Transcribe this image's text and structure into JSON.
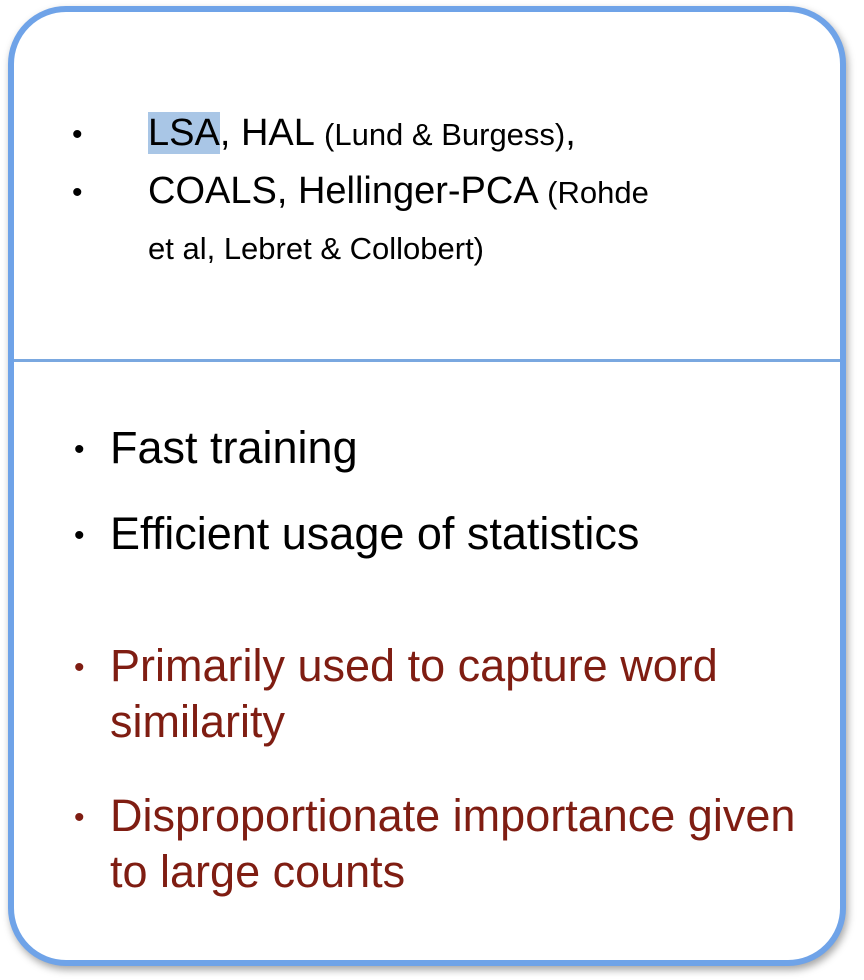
{
  "top": {
    "item1": {
      "bullet": "•",
      "lsa": "LSA",
      "hal": ", HAL ",
      "cite": "(Lund & Burgess)",
      "tail": ","
    },
    "item2": {
      "bullet": "•",
      "main": "COALS, Hellinger-PCA ",
      "cite_a": "(Rohde",
      "cite_b": "et al, Lebret & Collobert)"
    }
  },
  "bottom": {
    "items": [
      {
        "bullet": "•",
        "text": "Fast training"
      },
      {
        "bullet": "•",
        "text": "Efficient usage of statistics"
      },
      {
        "bullet": "•",
        "text": "Primarily used to capture word similarity"
      },
      {
        "bullet": "•",
        "text": "Disproportionate importance given to large counts"
      }
    ]
  },
  "colors": {
    "border": "#6fa3e8",
    "pro_text": "#000000",
    "con_text": "#7f1d12",
    "highlight": "#a9c6e6"
  }
}
